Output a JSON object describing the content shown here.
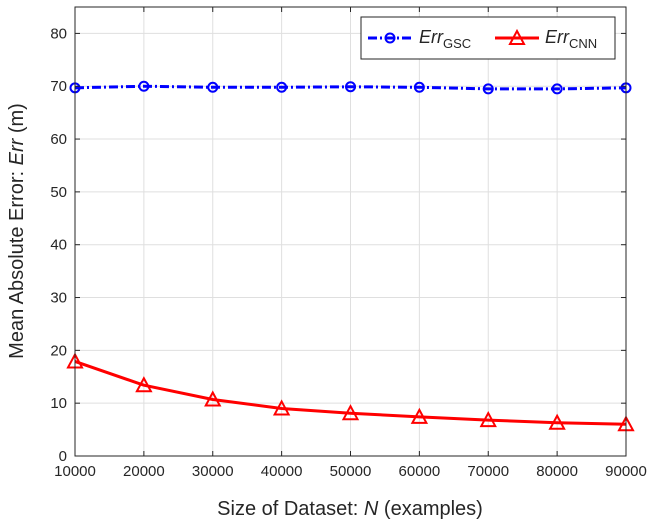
{
  "chart_data": {
    "type": "line",
    "xlabel": {
      "prefix": "Size of Dataset: ",
      "variable": "N",
      "suffix": " (examples)"
    },
    "ylabel": {
      "prefix": "Mean Absolute Error: ",
      "variable": "Err",
      "suffix": " (m)"
    },
    "x": [
      10000,
      20000,
      30000,
      40000,
      50000,
      60000,
      70000,
      80000,
      90000
    ],
    "xlim": [
      10000,
      90000
    ],
    "ylim": [
      0,
      85
    ],
    "xticks": [
      10000,
      20000,
      30000,
      40000,
      50000,
      60000,
      70000,
      80000,
      90000
    ],
    "yticks": [
      0,
      10,
      20,
      30,
      40,
      50,
      60,
      70,
      80
    ],
    "grid": true,
    "legend_position": "top-right",
    "series": [
      {
        "name": "Err_GSC",
        "name_main": "Err",
        "name_sub": "GSC",
        "color": "#0000ff",
        "line_style": "dash-dot",
        "marker": "circle",
        "values": [
          69.7,
          70.0,
          69.8,
          69.8,
          69.9,
          69.8,
          69.5,
          69.5,
          69.7
        ]
      },
      {
        "name": "Err_CNN",
        "name_main": "Err",
        "name_sub": "CNN",
        "color": "#ff0000",
        "line_style": "solid",
        "marker": "triangle",
        "values": [
          17.9,
          13.4,
          10.7,
          9.0,
          8.1,
          7.4,
          6.8,
          6.3,
          6.0
        ]
      }
    ]
  }
}
